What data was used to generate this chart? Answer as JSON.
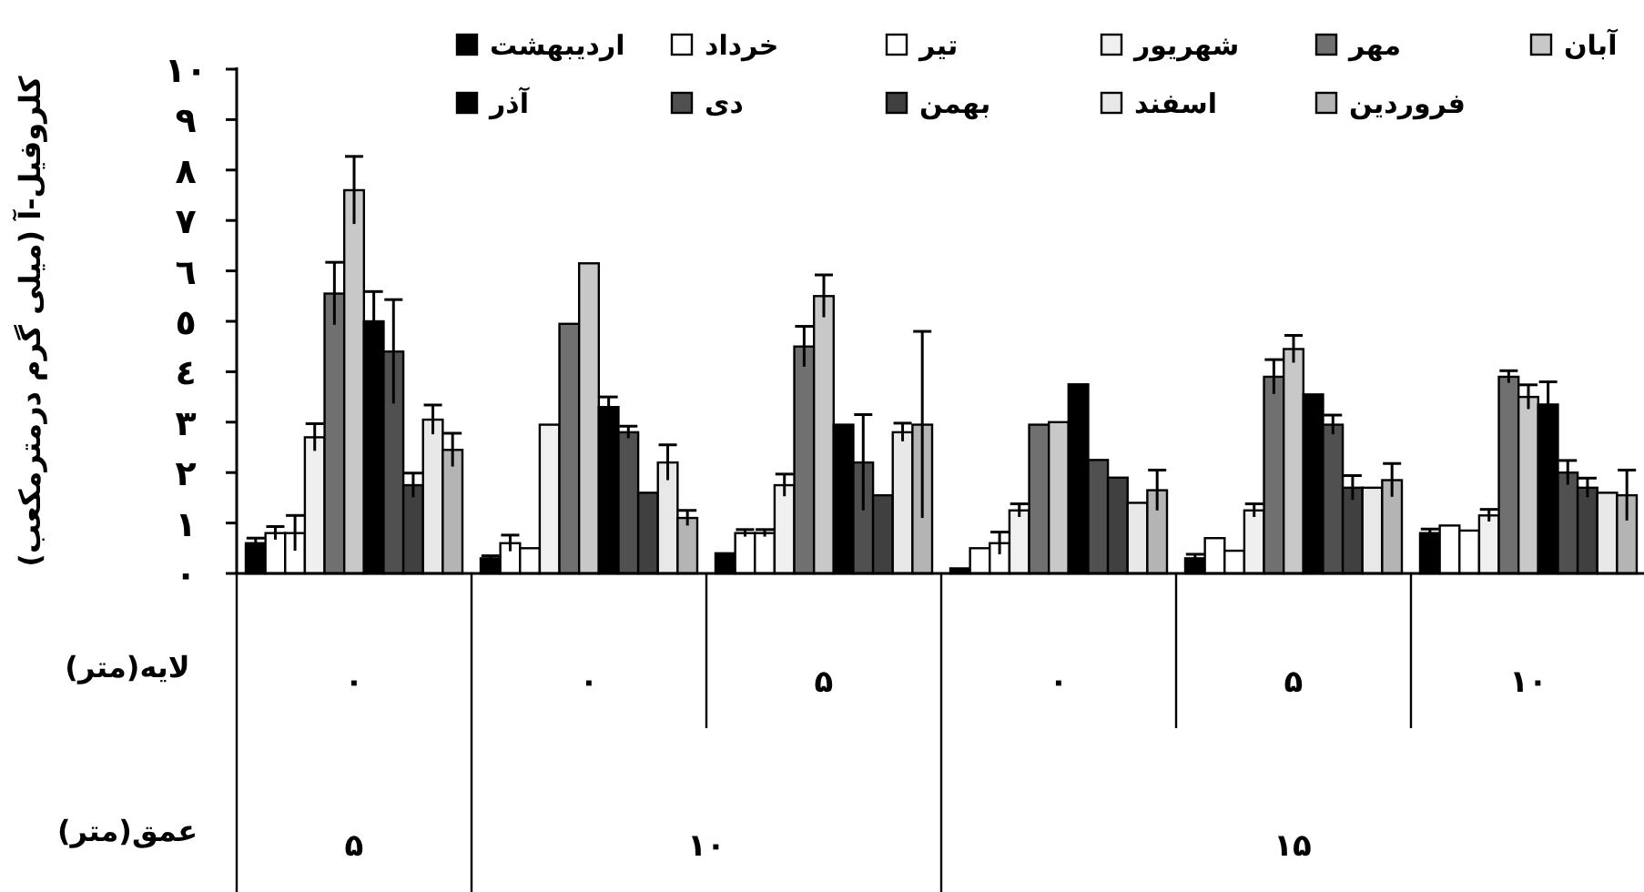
{
  "chart_data": {
    "type": "bar",
    "ylabel": "کلروفیل-آ (میلی گرم درمترمکعب)",
    "xlabel": "لایه(متر)",
    "annotations": [
      "عمق(متر)",
      "۵",
      "۱۰",
      "۱۵"
    ],
    "categories": [
      "۰",
      "۰",
      "۵",
      "۰",
      "۵",
      "۱۰"
    ],
    "ylim": [
      0,
      10
    ],
    "yticks": [
      {
        "value": 0,
        "label": "۰"
      },
      {
        "value": 1,
        "label": "۱"
      },
      {
        "value": 2,
        "label": "۲"
      },
      {
        "value": 3,
        "label": "۳"
      },
      {
        "value": 4,
        "label": "٤"
      },
      {
        "value": 5,
        "label": "٥"
      },
      {
        "value": 6,
        "label": "٦"
      },
      {
        "value": 7,
        "label": "۷"
      },
      {
        "value": 8,
        "label": "۸"
      },
      {
        "value": 9,
        "label": "۹"
      },
      {
        "value": 10,
        "label": "۱۰"
      }
    ],
    "legend": "top",
    "series": [
      {
        "name": "اردیبهشت",
        "color": "#000000",
        "values": [
          0.6,
          0.3,
          0.4,
          0.1,
          0.3,
          0.8
        ],
        "errors": [
          0.1,
          0.05,
          null,
          null,
          0.08,
          0.08
        ]
      },
      {
        "name": "خرداد",
        "color": "#ffffff",
        "values": [
          0.8,
          0.6,
          0.8,
          0.5,
          0.7,
          0.95
        ],
        "errors": [
          0.13,
          0.16,
          0.07,
          null,
          null,
          null
        ]
      },
      {
        "name": "تیر",
        "color": "#ffffff",
        "values": [
          0.8,
          0.5,
          0.8,
          0.6,
          0.45,
          0.85
        ],
        "errors": [
          0.35,
          null,
          0.07,
          0.22,
          null,
          null
        ]
      },
      {
        "name": "شهریور",
        "color": "#f0f0f0",
        "values": [
          2.7,
          2.95,
          1.75,
          1.25,
          1.25,
          1.15
        ],
        "errors": [
          0.27,
          null,
          0.22,
          0.13,
          0.13,
          0.12
        ]
      },
      {
        "name": "مهر",
        "color": "#707070",
        "values": [
          5.55,
          4.95,
          4.5,
          2.95,
          3.9,
          3.9
        ],
        "errors": [
          0.62,
          null,
          0.4,
          null,
          0.34,
          0.12
        ]
      },
      {
        "name": "آبان",
        "color": "#c8c8c8",
        "values": [
          7.6,
          6.15,
          5.5,
          3.0,
          4.45,
          3.5
        ],
        "errors": [
          0.67,
          null,
          0.42,
          null,
          0.27,
          0.24
        ]
      },
      {
        "name": "آذر",
        "color": "#000000",
        "values": [
          5.0,
          3.3,
          2.95,
          3.75,
          3.55,
          3.35
        ],
        "errors": [
          0.59,
          0.2,
          null,
          null,
          null,
          0.45
        ]
      },
      {
        "name": "دی",
        "color": "#505050",
        "values": [
          4.4,
          2.8,
          2.2,
          2.25,
          2.95,
          2.0
        ],
        "errors": [
          1.03,
          0.12,
          0.95,
          null,
          0.19,
          0.24
        ]
      },
      {
        "name": "بهمن",
        "color": "#404040",
        "values": [
          1.75,
          1.6,
          1.55,
          1.9,
          1.7,
          1.7
        ],
        "errors": [
          0.24,
          null,
          null,
          null,
          0.24,
          0.19
        ]
      },
      {
        "name": "اسفند",
        "color": "#e8e8e8",
        "values": [
          3.05,
          2.2,
          2.8,
          1.4,
          1.7,
          1.6
        ],
        "errors": [
          0.29,
          0.35,
          0.18,
          null,
          null,
          null
        ]
      },
      {
        "name": "فروردین",
        "color": "#b4b4b4",
        "values": [
          2.45,
          1.1,
          2.95,
          1.65,
          1.85,
          1.55
        ],
        "errors": [
          0.33,
          0.15,
          1.85,
          0.4,
          0.33,
          0.5
        ]
      }
    ]
  }
}
